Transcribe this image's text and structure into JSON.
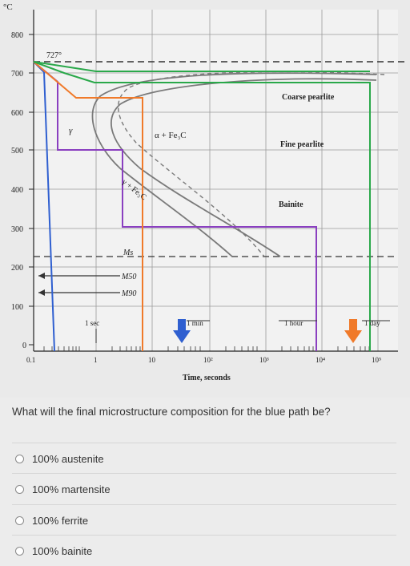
{
  "diagram": {
    "y_unit": "°C",
    "x_label": "Time, seconds",
    "temp_ticks": [
      "800",
      "700",
      "600",
      "500",
      "400",
      "300",
      "200",
      "100",
      "0"
    ],
    "time_ticks": [
      "0.1",
      "1",
      "10",
      "10²",
      "10³",
      "10⁴",
      "10⁵"
    ],
    "eutectoid_label": "727°",
    "gamma_label": "γ",
    "phase_label": "α + Fe₃C",
    "gamma_phase_label": "γ + Fe₃C",
    "ms_label": "Ms",
    "m50_label": "M50",
    "m90_label": "M90",
    "region_labels": [
      "Coarse pearlite",
      "Fine pearlite",
      "Bainite"
    ],
    "time_markers": [
      "1 sec",
      "1 min",
      "1 hour",
      "1 day"
    ],
    "path_colors": {
      "blue": "#2f5fd0",
      "orange": "#f07a2a",
      "purple": "#8a3fc0",
      "green": "#2aa84a"
    }
  },
  "question": {
    "text": "What will the final microstructure composition for the blue path be?",
    "options": [
      "100% austenite",
      "100% martensite",
      "100% ferrite",
      "100% bainite"
    ]
  }
}
